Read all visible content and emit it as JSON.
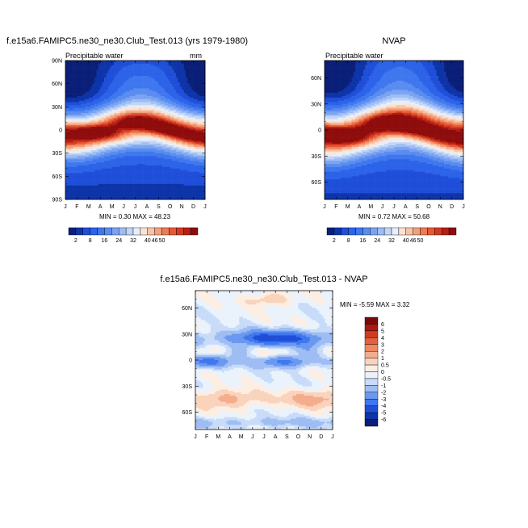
{
  "months": [
    "J",
    "F",
    "M",
    "A",
    "M",
    "J",
    "J",
    "A",
    "S",
    "O",
    "N",
    "D",
    "J"
  ],
  "colors": {
    "abs": [
      "#0a1f78",
      "#0d34a8",
      "#1f4fd9",
      "#2c63e8",
      "#3f77ef",
      "#5a8df0",
      "#7aa4f2",
      "#9ebdf4",
      "#c2d6f7",
      "#e6effb",
      "#fbe3d4",
      "#f7c3a9",
      "#f3a07b",
      "#ee7c54",
      "#e55a36",
      "#d43a20",
      "#b51f14",
      "#8e0c0c"
    ],
    "diff": [
      "#0a1f78",
      "#0d34a8",
      "#1f4fd9",
      "#3f77ef",
      "#6a98f0",
      "#9ebdf4",
      "#c8dbf8",
      "#eaf2fc",
      "#fdeee4",
      "#f9d3bc",
      "#f4ad8c",
      "#ee8762",
      "#e4603c",
      "#cf3b21",
      "#a81a12",
      "#7a0a0a"
    ]
  },
  "chart_data": [
    {
      "type": "heatmap",
      "title": "f.e15a6.FAMIPC5.ne30_ne30.Club_Test.013 (yrs 1979-1980)",
      "subtitle": "Precipitable water",
      "units": "mm",
      "x_ticks": [
        "J",
        "F",
        "M",
        "A",
        "M",
        "J",
        "J",
        "A",
        "S",
        "O",
        "N",
        "D",
        "J"
      ],
      "y_ticks": [
        "90N",
        "60N",
        "30N",
        "0",
        "30S",
        "60S",
        "90S"
      ],
      "ylim": [
        -90,
        90
      ],
      "min_label": "MIN =   0.30 MAX =  48.23",
      "min": 0.3,
      "max": 48.23
    },
    {
      "type": "heatmap",
      "title": "NVAP",
      "subtitle": "Precipitable water",
      "x_ticks": [
        "J",
        "F",
        "M",
        "A",
        "M",
        "J",
        "J",
        "A",
        "S",
        "O",
        "N",
        "D",
        "J"
      ],
      "y_ticks": [
        "60N",
        "30N",
        "0",
        "30S",
        "60S"
      ],
      "ylim": [
        -80,
        80
      ],
      "min_label": "MIN =   0.72 MAX =  50.68",
      "min": 0.72,
      "max": 50.68
    },
    {
      "type": "heatmap",
      "title": "f.e15a6.FAMIPC5.ne30_ne30.Club_Test.013 - NVAP",
      "x_ticks": [
        "J",
        "F",
        "M",
        "A",
        "M",
        "J",
        "J",
        "A",
        "S",
        "O",
        "N",
        "D",
        "J"
      ],
      "y_ticks": [
        "60N",
        "30N",
        "0",
        "30S",
        "60S"
      ],
      "ylim": [
        -80,
        80
      ],
      "min_label": "MIN =  -5.59 MAX =   3.32",
      "min": -5.59,
      "max": 3.32
    }
  ],
  "colorbar_abs": {
    "labels": [
      "2",
      "8",
      "16",
      "24",
      "32",
      "40",
      "46",
      "50"
    ]
  },
  "colorbar_diff": {
    "labels": [
      "6",
      "5",
      "4",
      "3",
      "2",
      "1",
      "0.5",
      "0",
      "-0.5",
      "-1",
      "-2",
      "-3",
      "-4",
      "-5",
      "-6"
    ]
  }
}
